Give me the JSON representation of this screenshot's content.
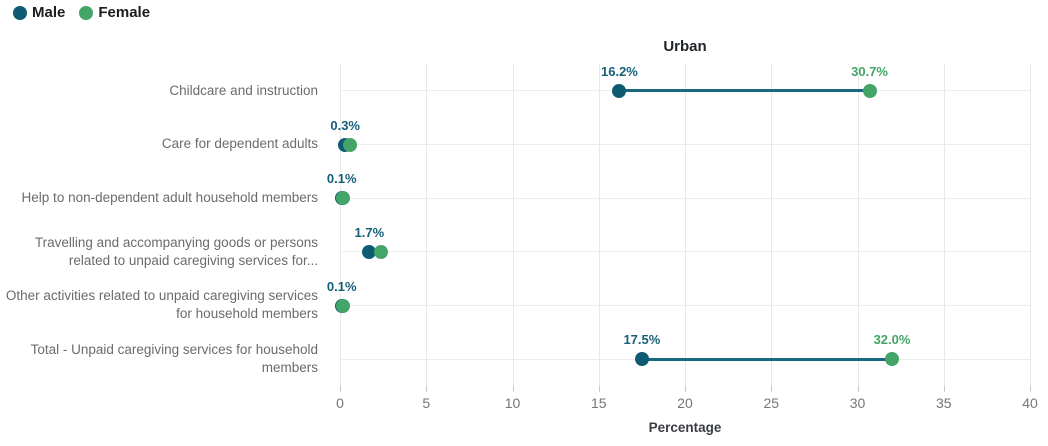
{
  "colors": {
    "male": "#0e5c74",
    "female": "#43a567",
    "connector": "#19687f",
    "male_label_text": "#15607a",
    "female_label_text": "#43a567",
    "grid": "#e8e8e8",
    "category_text": "#6b6b6b",
    "tick_text": "#767676",
    "title_text": "#20242b"
  },
  "legend": {
    "items": [
      {
        "label": "Male",
        "color_key": "male"
      },
      {
        "label": "Female",
        "color_key": "female"
      }
    ]
  },
  "chart_data": {
    "type": "dumbbell",
    "title": "Urban",
    "xlabel": "Percentage",
    "xlim": [
      0,
      40
    ],
    "xticks": [
      0,
      5,
      10,
      15,
      20,
      25,
      30,
      35,
      40
    ],
    "grid": true,
    "legend_position": "top-left",
    "series_names": [
      "Male",
      "Female"
    ],
    "rows": [
      {
        "category": "Childcare and instruction",
        "male": 16.2,
        "female": 30.7,
        "male_label": "16.2%",
        "female_label": "30.7%"
      },
      {
        "category": "Care for dependent adults",
        "male": 0.3,
        "female": 0.6,
        "male_label": "0.3%",
        "female_label": null
      },
      {
        "category": "Help to non-dependent adult household members",
        "male": 0.1,
        "female": 0.2,
        "male_label": "0.1%",
        "female_label": null
      },
      {
        "category": "Travelling and accompanying goods or persons related to unpaid caregiving services for...",
        "male": 1.7,
        "female": 2.4,
        "male_label": "1.7%",
        "female_label": null
      },
      {
        "category": "Other activities related to unpaid caregiving services for household members",
        "male": 0.1,
        "female": 0.2,
        "male_label": "0.1%",
        "female_label": null
      },
      {
        "category": "Total - Unpaid caregiving services for household members",
        "male": 17.5,
        "female": 32.0,
        "male_label": "17.5%",
        "female_label": "32.0%"
      }
    ]
  }
}
